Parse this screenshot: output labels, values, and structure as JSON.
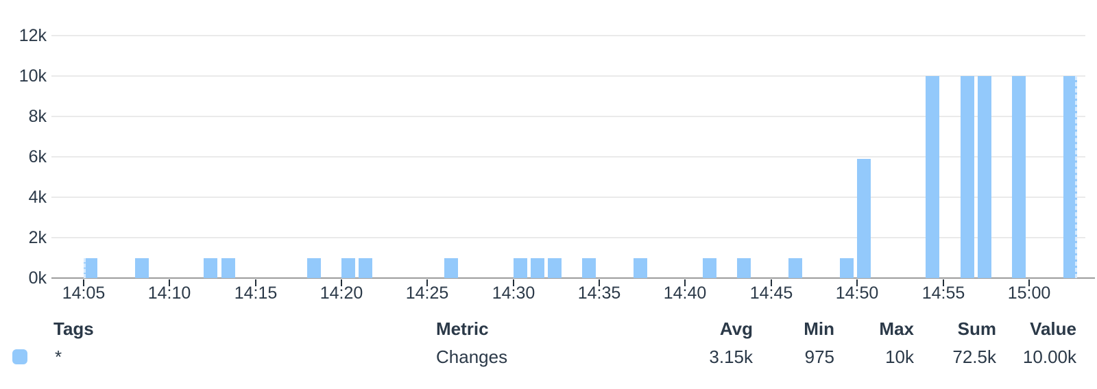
{
  "chart_data": {
    "type": "bar",
    "title": "",
    "series_name": "Changes",
    "bar_color": "#93c9fb",
    "grid": true,
    "legend_position": "bottom-table",
    "ylim": [
      0,
      12000
    ],
    "y_ticks": [
      {
        "label": "0k",
        "value": 0
      },
      {
        "label": "2k",
        "value": 2000
      },
      {
        "label": "4k",
        "value": 4000
      },
      {
        "label": "6k",
        "value": 6000
      },
      {
        "label": "8k",
        "value": 8000
      },
      {
        "label": "10k",
        "value": 10000
      },
      {
        "label": "12k",
        "value": 12000
      }
    ],
    "x_ticks": [
      "14:05",
      "14:10",
      "14:15",
      "14:20",
      "14:25",
      "14:30",
      "14:35",
      "14:40",
      "14:45",
      "14:50",
      "14:55",
      "15:00"
    ],
    "points": [
      {
        "time": "14:05",
        "value": 975
      },
      {
        "time": "14:08",
        "value": 975
      },
      {
        "time": "14:12",
        "value": 975
      },
      {
        "time": "14:13",
        "value": 975
      },
      {
        "time": "14:18",
        "value": 975
      },
      {
        "time": "14:20",
        "value": 975
      },
      {
        "time": "14:21",
        "value": 975
      },
      {
        "time": "14:26",
        "value": 975
      },
      {
        "time": "14:30",
        "value": 975
      },
      {
        "time": "14:31",
        "value": 975
      },
      {
        "time": "14:32",
        "value": 975
      },
      {
        "time": "14:34",
        "value": 975
      },
      {
        "time": "14:37",
        "value": 975
      },
      {
        "time": "14:41",
        "value": 975
      },
      {
        "time": "14:43",
        "value": 975
      },
      {
        "time": "14:46",
        "value": 975
      },
      {
        "time": "14:49",
        "value": 975
      },
      {
        "time": "14:50",
        "value": 5900
      },
      {
        "time": "14:54",
        "value": 10000
      },
      {
        "time": "14:56",
        "value": 10000
      },
      {
        "time": "14:57",
        "value": 10000
      },
      {
        "time": "14:59",
        "value": 10000
      },
      {
        "time": "15:02",
        "value": 10000
      }
    ]
  },
  "legend_table": {
    "headers": {
      "tags": "Tags",
      "metric": "Metric",
      "avg": "Avg",
      "min": "Min",
      "max": "Max",
      "sum": "Sum",
      "value": "Value"
    },
    "row": {
      "swatch_color": "#93c9fb",
      "tags": "*",
      "metric": "Changes",
      "avg": "3.15k",
      "min": "975",
      "max": "10k",
      "sum": "72.5k",
      "value": "10.00k"
    }
  }
}
